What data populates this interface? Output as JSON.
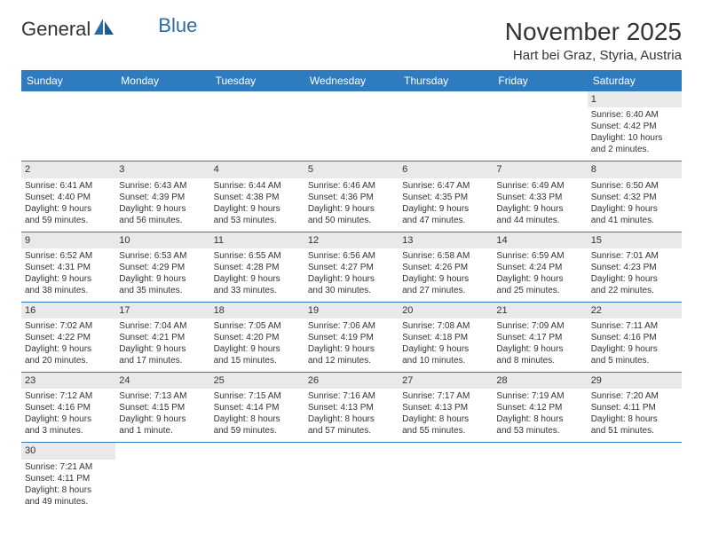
{
  "logo": {
    "part1": "General",
    "part2": "Blue"
  },
  "title": "November 2025",
  "location": "Hart bei Graz, Styria, Austria",
  "colors": {
    "header_bg": "#2e7bbf",
    "header_text": "#ffffff",
    "daynum_bg": "#e9e9e9",
    "border": "#2e7bbf",
    "logo_blue": "#2b6ca3"
  },
  "font": {
    "body_size": 10,
    "title_size": 28,
    "daynum_size": 11,
    "header_size": 12
  },
  "weekdays": [
    "Sunday",
    "Monday",
    "Tuesday",
    "Wednesday",
    "Thursday",
    "Friday",
    "Saturday"
  ],
  "weeks": [
    {
      "nums": [
        "",
        "",
        "",
        "",
        "",
        "",
        "1"
      ],
      "cells": [
        null,
        null,
        null,
        null,
        null,
        null,
        {
          "sunrise": "6:40 AM",
          "sunset": "4:42 PM",
          "daylight": "10 hours and 2 minutes."
        }
      ]
    },
    {
      "nums": [
        "2",
        "3",
        "4",
        "5",
        "6",
        "7",
        "8"
      ],
      "cells": [
        {
          "sunrise": "6:41 AM",
          "sunset": "4:40 PM",
          "daylight": "9 hours and 59 minutes."
        },
        {
          "sunrise": "6:43 AM",
          "sunset": "4:39 PM",
          "daylight": "9 hours and 56 minutes."
        },
        {
          "sunrise": "6:44 AM",
          "sunset": "4:38 PM",
          "daylight": "9 hours and 53 minutes."
        },
        {
          "sunrise": "6:46 AM",
          "sunset": "4:36 PM",
          "daylight": "9 hours and 50 minutes."
        },
        {
          "sunrise": "6:47 AM",
          "sunset": "4:35 PM",
          "daylight": "9 hours and 47 minutes."
        },
        {
          "sunrise": "6:49 AM",
          "sunset": "4:33 PM",
          "daylight": "9 hours and 44 minutes."
        },
        {
          "sunrise": "6:50 AM",
          "sunset": "4:32 PM",
          "daylight": "9 hours and 41 minutes."
        }
      ]
    },
    {
      "nums": [
        "9",
        "10",
        "11",
        "12",
        "13",
        "14",
        "15"
      ],
      "cells": [
        {
          "sunrise": "6:52 AM",
          "sunset": "4:31 PM",
          "daylight": "9 hours and 38 minutes."
        },
        {
          "sunrise": "6:53 AM",
          "sunset": "4:29 PM",
          "daylight": "9 hours and 35 minutes."
        },
        {
          "sunrise": "6:55 AM",
          "sunset": "4:28 PM",
          "daylight": "9 hours and 33 minutes."
        },
        {
          "sunrise": "6:56 AM",
          "sunset": "4:27 PM",
          "daylight": "9 hours and 30 minutes."
        },
        {
          "sunrise": "6:58 AM",
          "sunset": "4:26 PM",
          "daylight": "9 hours and 27 minutes."
        },
        {
          "sunrise": "6:59 AM",
          "sunset": "4:24 PM",
          "daylight": "9 hours and 25 minutes."
        },
        {
          "sunrise": "7:01 AM",
          "sunset": "4:23 PM",
          "daylight": "9 hours and 22 minutes."
        }
      ]
    },
    {
      "nums": [
        "16",
        "17",
        "18",
        "19",
        "20",
        "21",
        "22"
      ],
      "cells": [
        {
          "sunrise": "7:02 AM",
          "sunset": "4:22 PM",
          "daylight": "9 hours and 20 minutes."
        },
        {
          "sunrise": "7:04 AM",
          "sunset": "4:21 PM",
          "daylight": "9 hours and 17 minutes."
        },
        {
          "sunrise": "7:05 AM",
          "sunset": "4:20 PM",
          "daylight": "9 hours and 15 minutes."
        },
        {
          "sunrise": "7:06 AM",
          "sunset": "4:19 PM",
          "daylight": "9 hours and 12 minutes."
        },
        {
          "sunrise": "7:08 AM",
          "sunset": "4:18 PM",
          "daylight": "9 hours and 10 minutes."
        },
        {
          "sunrise": "7:09 AM",
          "sunset": "4:17 PM",
          "daylight": "9 hours and 8 minutes."
        },
        {
          "sunrise": "7:11 AM",
          "sunset": "4:16 PM",
          "daylight": "9 hours and 5 minutes."
        }
      ]
    },
    {
      "nums": [
        "23",
        "24",
        "25",
        "26",
        "27",
        "28",
        "29"
      ],
      "cells": [
        {
          "sunrise": "7:12 AM",
          "sunset": "4:16 PM",
          "daylight": "9 hours and 3 minutes."
        },
        {
          "sunrise": "7:13 AM",
          "sunset": "4:15 PM",
          "daylight": "9 hours and 1 minute."
        },
        {
          "sunrise": "7:15 AM",
          "sunset": "4:14 PM",
          "daylight": "8 hours and 59 minutes."
        },
        {
          "sunrise": "7:16 AM",
          "sunset": "4:13 PM",
          "daylight": "8 hours and 57 minutes."
        },
        {
          "sunrise": "7:17 AM",
          "sunset": "4:13 PM",
          "daylight": "8 hours and 55 minutes."
        },
        {
          "sunrise": "7:19 AM",
          "sunset": "4:12 PM",
          "daylight": "8 hours and 53 minutes."
        },
        {
          "sunrise": "7:20 AM",
          "sunset": "4:11 PM",
          "daylight": "8 hours and 51 minutes."
        }
      ]
    },
    {
      "nums": [
        "30",
        "",
        "",
        "",
        "",
        "",
        ""
      ],
      "cells": [
        {
          "sunrise": "7:21 AM",
          "sunset": "4:11 PM",
          "daylight": "8 hours and 49 minutes."
        },
        null,
        null,
        null,
        null,
        null,
        null
      ]
    }
  ],
  "labels": {
    "sunrise": "Sunrise:",
    "sunset": "Sunset:",
    "daylight": "Daylight:"
  }
}
